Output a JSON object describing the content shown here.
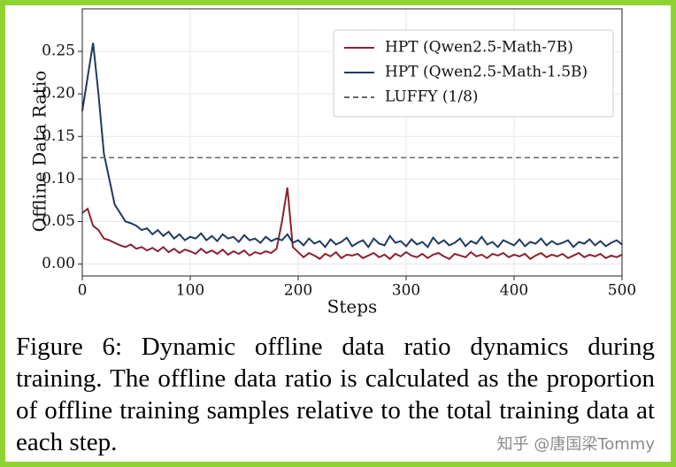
{
  "chart_data": {
    "type": "line",
    "y_label": "Offline Data Ratio",
    "x_label": "Steps",
    "x": [
      0,
      5,
      10,
      15,
      20,
      25,
      30,
      35,
      40,
      45,
      50,
      55,
      60,
      65,
      70,
      75,
      80,
      85,
      90,
      95,
      100,
      105,
      110,
      115,
      120,
      125,
      130,
      135,
      140,
      145,
      150,
      155,
      160,
      165,
      170,
      175,
      180,
      185,
      190,
      195,
      200,
      205,
      210,
      215,
      220,
      225,
      230,
      235,
      240,
      245,
      250,
      255,
      260,
      265,
      270,
      275,
      280,
      285,
      290,
      295,
      300,
      305,
      310,
      315,
      320,
      325,
      330,
      335,
      340,
      345,
      350,
      355,
      360,
      365,
      370,
      375,
      380,
      385,
      390,
      395,
      400,
      405,
      410,
      415,
      420,
      425,
      430,
      435,
      440,
      445,
      450,
      455,
      460,
      465,
      470,
      475,
      480,
      485,
      490,
      495,
      500
    ],
    "series": [
      {
        "name": "HPT (Qwen2.5-Math-7B)",
        "color": "#8b2232",
        "values": [
          0.06,
          0.065,
          0.045,
          0.04,
          0.03,
          0.028,
          0.025,
          0.022,
          0.02,
          0.023,
          0.018,
          0.02,
          0.016,
          0.019,
          0.015,
          0.02,
          0.014,
          0.018,
          0.013,
          0.017,
          0.015,
          0.012,
          0.018,
          0.013,
          0.016,
          0.012,
          0.017,
          0.011,
          0.015,
          0.012,
          0.016,
          0.01,
          0.014,
          0.012,
          0.015,
          0.013,
          0.018,
          0.05,
          0.09,
          0.02,
          0.014,
          0.008,
          0.013,
          0.01,
          0.006,
          0.012,
          0.009,
          0.014,
          0.007,
          0.011,
          0.01,
          0.012,
          0.007,
          0.01,
          0.013,
          0.008,
          0.011,
          0.006,
          0.012,
          0.009,
          0.014,
          0.01,
          0.008,
          0.012,
          0.007,
          0.011,
          0.013,
          0.009,
          0.006,
          0.012,
          0.01,
          0.008,
          0.014,
          0.009,
          0.011,
          0.007,
          0.012,
          0.01,
          0.013,
          0.008,
          0.011,
          0.009,
          0.012,
          0.006,
          0.01,
          0.013,
          0.008,
          0.011,
          0.009,
          0.012,
          0.007,
          0.01,
          0.013,
          0.008,
          0.011,
          0.009,
          0.012,
          0.007,
          0.01,
          0.008,
          0.011
        ]
      },
      {
        "name": "HPT (Qwen2.5-Math-1.5B)",
        "color": "#1d3a63",
        "values": [
          0.18,
          0.22,
          0.26,
          0.2,
          0.13,
          0.1,
          0.07,
          0.06,
          0.05,
          0.048,
          0.045,
          0.04,
          0.042,
          0.035,
          0.04,
          0.033,
          0.038,
          0.03,
          0.035,
          0.028,
          0.032,
          0.03,
          0.036,
          0.028,
          0.033,
          0.027,
          0.035,
          0.03,
          0.032,
          0.026,
          0.034,
          0.028,
          0.03,
          0.025,
          0.032,
          0.027,
          0.03,
          0.028,
          0.035,
          0.025,
          0.028,
          0.022,
          0.03,
          0.024,
          0.027,
          0.02,
          0.029,
          0.023,
          0.026,
          0.031,
          0.021,
          0.025,
          0.028,
          0.02,
          0.03,
          0.024,
          0.022,
          0.033,
          0.025,
          0.027,
          0.021,
          0.029,
          0.023,
          0.026,
          0.02,
          0.031,
          0.024,
          0.028,
          0.022,
          0.025,
          0.03,
          0.021,
          0.027,
          0.024,
          0.032,
          0.023,
          0.026,
          0.02,
          0.028,
          0.025,
          0.022,
          0.029,
          0.021,
          0.026,
          0.024,
          0.03,
          0.022,
          0.027,
          0.023,
          0.025,
          0.028,
          0.02,
          0.026,
          0.024,
          0.029,
          0.022,
          0.027,
          0.021,
          0.025,
          0.028,
          0.023
        ]
      }
    ],
    "reference_lines": [
      {
        "name": "LUFFY (1/8)",
        "value": 0.125,
        "color": "#666666",
        "dashed": true
      }
    ],
    "xlim": [
      0,
      500
    ],
    "xticks": [
      0,
      100,
      200,
      300,
      400,
      500
    ],
    "ylim": [
      -0.014,
      0.3
    ],
    "yticks": [
      {
        "value": 0,
        "label": "0.00"
      },
      0.05,
      {
        "value": 0.1,
        "label": "0.10"
      },
      0.15,
      {
        "value": 0.2,
        "label": "0.20"
      },
      0.25
    ],
    "grid": true,
    "legend": "upper right",
    "caption": "Figure 6: Dynamic offline data ratio dynamics during training. The offline data ratio is calculated as the proportion of offline training samples relative to the total training data at each step.",
    "watermark": "知乎 @唐国梁Tommy"
  }
}
